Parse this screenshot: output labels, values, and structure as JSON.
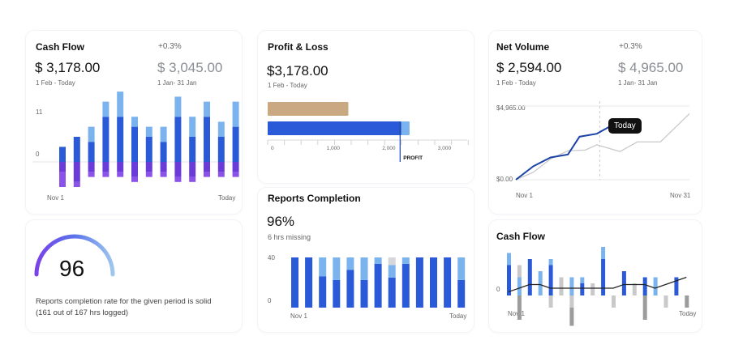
{
  "colors": {
    "dark_blue": "#2a5ad8",
    "light_blue": "#7ab3ee",
    "purple": "#8a52e8",
    "purple_dark": "#6a3bd8",
    "brown": "#c9a882",
    "gray": "#c9c9c9",
    "line_dark": "#1c44a8"
  },
  "cashflow": {
    "title": "Cash Flow",
    "delta": "+0.3%",
    "value": "$ 3,178.00",
    "period": "1 Feb - Today",
    "compare_value": "$ 3,045.00",
    "compare_period": "1 Jan- 31 Jan",
    "y_top_label": "11",
    "y_zero_label": "0",
    "x_start": "Nov 1",
    "x_end": "Today",
    "chart_data": {
      "type": "bar",
      "y_axis_labels": [
        "11",
        "0"
      ],
      "categories_labels": [
        "Nov 1",
        "Today"
      ],
      "series": [
        {
          "values": [
            3,
            5,
            4,
            9,
            9,
            7,
            5,
            4,
            9,
            5,
            9,
            5,
            7
          ]
        },
        {
          "values": [
            0,
            0,
            3,
            3,
            5,
            2,
            2,
            3,
            4,
            4,
            3,
            3,
            5
          ]
        },
        {
          "values": [
            -2,
            -4,
            -2,
            -2,
            -2,
            -3,
            -2,
            -2,
            -3,
            -3,
            -2,
            -2,
            -2
          ]
        },
        {
          "values": [
            -3,
            -1,
            -1,
            -1,
            -1,
            -1,
            -1,
            -1,
            -1,
            -1,
            -1,
            -1,
            -1
          ]
        }
      ]
    }
  },
  "gauge": {
    "value": "96",
    "text": "Reports completion rate for the given period is solid (161 out of 167 hrs logged)",
    "chart_data": {
      "type": "gauge",
      "value": 96,
      "max": 100
    }
  },
  "profit": {
    "title": "Profit & Loss",
    "value": "$3,178.00",
    "period": "1 Feb - Today",
    "marker_label": "PROFIT",
    "chart_data": {
      "type": "bar",
      "orientation": "horizontal",
      "x_tick_labels": [
        "0",
        "1,000",
        "2,000",
        "3,000"
      ],
      "series": [
        {
          "values": [
            1450
          ]
        },
        {
          "values": [
            2550
          ]
        },
        {
          "values": [
            2400
          ]
        }
      ],
      "marker": 2380
    }
  },
  "reports": {
    "title": "Reports Completion",
    "value": "96%",
    "sub": "6 hrs missing",
    "y_top_label": "40",
    "y_zero_label": "0",
    "x_start": "Nov 1",
    "x_end": "Today",
    "chart_data": {
      "type": "bar",
      "stacked": true,
      "y_axis_labels": [
        "40",
        "0"
      ],
      "categories_labels": [
        "Nov 1",
        "Today"
      ],
      "series": [
        {
          "values": [
            40,
            40,
            25,
            22,
            30,
            22,
            35,
            24,
            35,
            40,
            40,
            40,
            22
          ]
        },
        {
          "values": [
            0,
            0,
            15,
            18,
            10,
            18,
            5,
            10,
            5,
            0,
            0,
            0,
            18
          ]
        },
        {
          "values": [
            0,
            0,
            0,
            0,
            0,
            0,
            0,
            6,
            0,
            0,
            0,
            0,
            0
          ]
        }
      ]
    }
  },
  "netvolume": {
    "title": "Net Volume",
    "delta": "+0.3%",
    "value": "$ 2,594.00",
    "period": "1 Feb - Today",
    "compare_value": "$ 4,965.00",
    "compare_period": "1 Jan- 31 Jan",
    "y_top_label": "$4,965.00",
    "y_zero_label": "$0.00",
    "x_start": "Nov 1",
    "x_end": "Nov 31",
    "tooltip": "Today",
    "chart_data": {
      "type": "line",
      "y_axis_labels": [
        "$4,965.00",
        "$0.00"
      ],
      "x_axis_labels": [
        "Nov 1",
        "Nov 31"
      ],
      "series": [
        {
          "x": [
            1,
            4,
            7,
            10,
            12,
            15,
            18
          ],
          "y": [
            0,
            900,
            1500,
            1700,
            2900,
            3100,
            3750
          ]
        },
        {
          "x": [
            1,
            4,
            7,
            10,
            13,
            15,
            19,
            22,
            26,
            31
          ],
          "y": [
            0,
            500,
            1400,
            1950,
            2000,
            2350,
            1900,
            2550,
            2550,
            4450
          ]
        }
      ]
    }
  },
  "cashflow2": {
    "title": "Cash Flow",
    "y_zero_label": "0",
    "x_start": "Nov 1",
    "x_end": "Today",
    "chart_data": {
      "type": "bar",
      "y_axis_labels": [
        "0"
      ],
      "categories_labels": [
        "Nov 1",
        "Today"
      ],
      "series": [
        {
          "values": [
            5,
            0,
            6,
            0,
            5,
            0,
            0,
            2,
            0,
            6,
            0,
            4,
            0,
            3,
            0,
            0,
            3,
            0
          ]
        },
        {
          "values": [
            2,
            3,
            0,
            4,
            1,
            0,
            3,
            1,
            0,
            2,
            0,
            0,
            0,
            0,
            3,
            0,
            0,
            0
          ]
        },
        {
          "values": [
            0,
            2,
            0,
            0,
            -2,
            3,
            -2,
            0,
            2,
            0,
            -2,
            0,
            2,
            0,
            0,
            -2,
            0,
            0
          ]
        },
        {
          "values": [
            0,
            -4,
            0,
            0,
            0,
            0,
            -3,
            0,
            0,
            0,
            0,
            0,
            0,
            -4,
            0,
            0,
            0,
            -2
          ]
        }
      ],
      "line": [
        1,
        2,
        3,
        3,
        2,
        2,
        2,
        2,
        2,
        2,
        2,
        3,
        3,
        3,
        2,
        3,
        4,
        5
      ]
    }
  }
}
